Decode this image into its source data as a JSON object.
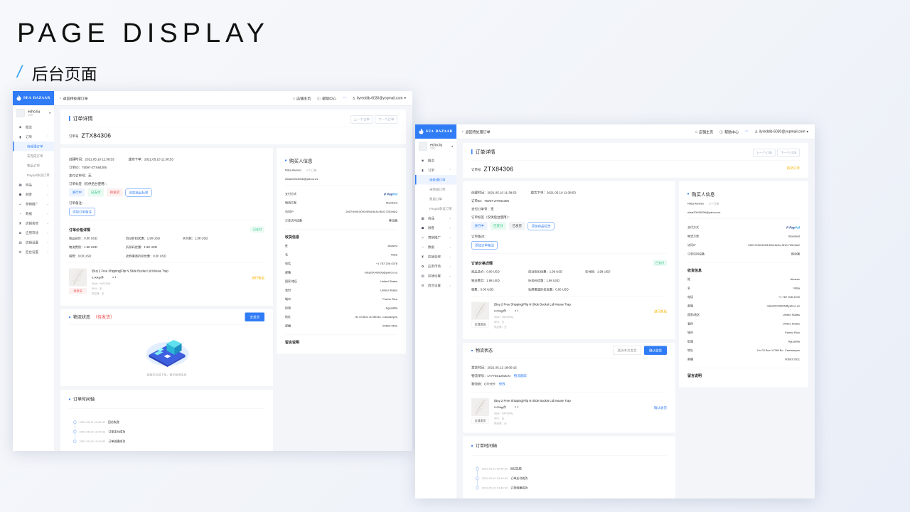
{
  "slide": {
    "title": "PAGE DISPLAY",
    "slash": "/",
    "subtitle": "后台页面"
  },
  "colors": {
    "accent": "#2f7cf6",
    "warning": "#f5b400",
    "danger": "#ef4444",
    "success": "#1fbf7a"
  },
  "windows": [
    {
      "variant": "pending",
      "logo": "SEA BAZAAR",
      "header": {
        "back": "返回待处理订单",
        "links": [
          {
            "label": "店铺主页",
            "icon": "home-icon"
          },
          {
            "label": "帮助中心",
            "icon": "help-icon"
          }
        ],
        "email": "ilyreddib-6030@yopmail.com"
      },
      "sidebar": {
        "user": {
          "name": "echo.liu",
          "currency": "USD"
        },
        "menu": [
          {
            "label": "概览",
            "icon": "dashboard-icon"
          },
          {
            "label": "订单",
            "icon": "order-icon",
            "expanded": true,
            "children": [
              {
                "label": "待处理订单",
                "active": true
              },
              {
                "label": "未完成订单"
              },
              {
                "label": "售后订单"
              },
              {
                "label": "Paypal争议订单"
              }
            ]
          },
          {
            "label": "商品",
            "icon": "product-icon"
          },
          {
            "label": "顾客",
            "icon": "customer-icon"
          },
          {
            "label": "营销推广",
            "icon": "marketing-icon"
          },
          {
            "label": "数据",
            "icon": "data-icon"
          },
          {
            "label": "店铺装修",
            "icon": "decor-icon"
          },
          {
            "label": "应用市场",
            "icon": "apps-icon"
          },
          {
            "label": "店铺设置",
            "icon": "store-settings-icon"
          },
          {
            "label": "后台设置",
            "icon": "settings-icon"
          }
        ]
      },
      "title": {
        "heading": "订单详情",
        "order_no_label": "订单号",
        "order_no": "ZTX84306",
        "prev": "上一个订单",
        "next": "下一个订单"
      },
      "info": {
        "created": "创建时间：2021.05.10 11:38:53",
        "placed": "成功下单：2021.05.10 11:38:53",
        "order_id": "订单ID：75097-ZTX84306",
        "pay_no": "支付订单号：无",
        "tags_label": "订单标签（仅供后台使用）：",
        "tags": [
          {
            "label": "进行中",
            "tone": "blue"
          },
          {
            "label": "已支付",
            "tone": "green"
          },
          {
            "label": "待发货",
            "tone": "red"
          }
        ],
        "add_tag": "添加商品标签",
        "note_label": "订单备注：",
        "add_note": "添加订单备注"
      },
      "price": {
        "title": "订单价格详情",
        "status": "已支付",
        "cells": [
          "商品总价：0.00 USD",
          "自动折扣优惠：1.98 USD",
          "实付款：1.98 USD",
          "物流费用：1.98 USD",
          "折扣码优惠：1.98 USD",
          "",
          "税费：0.00 USD",
          "社群渠道折扣优惠：0.00 USD",
          ""
        ]
      },
      "product": {
        "title": "(Buy 2 Free Shipping)Flip N Slide Bucket Lid Mouse Trap",
        "weight": "0.00kg/件",
        "qty": "x 1",
        "style": "Style：NATURAL",
        "sku": "SKU：无",
        "supplier": "供应商：无",
        "badge": "待发货",
        "badge_tone": "red",
        "action": "进行售后",
        "action_tone": "yellow"
      },
      "logistics": {
        "title": "物流状态",
        "status": "（待发货）",
        "ship_button": "去发货",
        "empty_text": "顾客未完成下单，暂无物流信息"
      },
      "timeline": {
        "title": "订单时间轴",
        "items": [
          {
            "time": "2021.05.11 13:40:32",
            "text": "回访失败"
          },
          {
            "time": "2021.05.10 13:40:32",
            "text": "订单支付成功"
          },
          {
            "time": "2021.05.10 13:40:32",
            "text": "订单创建成功"
          }
        ]
      },
      "buyer": {
        "title": "购买人信息",
        "name": "Nilsa Alvarez",
        "orders": "0个订单",
        "email": "nilsa20043006@yahoo.es",
        "rows": [
          {
            "label": "支付方式",
            "value": "PayPal"
          },
          {
            "label": "物流方案",
            "value": "Standard"
          },
          {
            "label": "访问IP",
            "value": "2607:fb90:5093:9f54:8c3c:f610:725:b8c2"
          },
          {
            "label": "订单访问设备",
            "value": "移动端"
          }
        ],
        "shipping_title": "收货信息",
        "shipping": [
          {
            "label": "姓",
            "value": "Alvarez"
          },
          {
            "label": "名",
            "value": "Nilsa"
          },
          {
            "label": "电话",
            "value": "+1 787 208 4376"
          },
          {
            "label": "邮箱",
            "value": "nilsa20043006@yahoo.es"
          },
          {
            "label": "国家/地区",
            "value": "United States"
          },
          {
            "label": "省份",
            "value": "United States"
          },
          {
            "label": "城市",
            "value": "Puerto Rico"
          },
          {
            "label": "街道",
            "value": "Aguadilla"
          },
          {
            "label": "地址",
            "value": "Hc 03 Box 11788 Bo. Camaseyes"
          },
          {
            "label": "邮编",
            "value": "00603 9511"
          }
        ],
        "message_title": "留言说明"
      }
    },
    {
      "variant": "shipped",
      "logo": "SEA BAZAAR",
      "header": {
        "back": "返回待处理订单",
        "links": [
          {
            "label": "店铺主页",
            "icon": "home-icon"
          },
          {
            "label": "帮助中心",
            "icon": "help-icon"
          }
        ],
        "email": "ilyreddib-6030@yopmail.com"
      },
      "sidebar": {
        "user": {
          "name": "echo.liu",
          "currency": "USD"
        },
        "menu": [
          {
            "label": "概览",
            "icon": "dashboard-icon"
          },
          {
            "label": "订单",
            "icon": "order-icon",
            "expanded": true,
            "children": [
              {
                "label": "待处理订单",
                "active": true
              },
              {
                "label": "未完成订单"
              },
              {
                "label": "售后订单"
              },
              {
                "label": "Paypal争议订单"
              }
            ]
          },
          {
            "label": "商品",
            "icon": "product-icon"
          },
          {
            "label": "顾客",
            "icon": "customer-icon"
          },
          {
            "label": "营销推广",
            "icon": "marketing-icon"
          },
          {
            "label": "数据",
            "icon": "data-icon"
          },
          {
            "label": "店铺装修",
            "icon": "decor-icon"
          },
          {
            "label": "应用市场",
            "icon": "apps-icon"
          },
          {
            "label": "店铺设置",
            "icon": "store-settings-icon"
          },
          {
            "label": "后台设置",
            "icon": "settings-icon"
          }
        ]
      },
      "title": {
        "heading": "订单详情",
        "order_no_label": "订单号",
        "order_no": "ZTX84306",
        "prev": "上一个订单",
        "next": "下一个订单",
        "cancel": "取消订单"
      },
      "info": {
        "created": "创建时间：2021.05.10 11:38:53",
        "placed": "成功下单：2021.05.10 11:38:53",
        "order_id": "订单ID：75097-ZTX84306",
        "pay_no": "支付订单号：无",
        "tags_label": "订单标签（仅供后台使用）：",
        "tags": [
          {
            "label": "进行中",
            "tone": "blue"
          },
          {
            "label": "已支付",
            "tone": "green"
          },
          {
            "label": "已发货",
            "tone": "gray"
          }
        ],
        "add_tag": "添加商品标签",
        "note_label": "订单备注：",
        "add_note": "添加订单备注"
      },
      "price": {
        "title": "订单价格详情",
        "status": "已支付",
        "cells": [
          "商品总价：0.00 USD",
          "自动折扣优惠：1.98 USD",
          "实付款：1.98 USD",
          "物流费用：1.98 USD",
          "折扣码优惠：1.98 USD",
          "",
          "税费：0.00 USD",
          "社群渠道折扣优惠：0.00 USD",
          ""
        ]
      },
      "product": {
        "title": "(Buy 2 Free Shipping)Flip N Slide Bucket Lid Mouse Trap",
        "weight": "0.00kg/件",
        "qty": "x 1",
        "style": "Style：NATURAL",
        "sku": "SKU：无",
        "supplier": "供应商：无",
        "badge": "全部发货",
        "badge_tone": "gray",
        "action": "进行售后",
        "action_tone": "yellow"
      },
      "logistics": {
        "title": "物流状态",
        "cancel_button": "取消本次发货",
        "confirm_button": "确认收货",
        "ship_time": "发货时间：2021.05.12 18:09:15",
        "tracking": "物流单号：LY770S1283CN",
        "tracking_link": "物流跟踪",
        "carrier": "物流商：OTHER",
        "carrier_link": "修改",
        "product": {
          "title": "(Buy 2 Free Shipping)Flip N Slide Bucket Lid Mouse Trap",
          "weight": "0.00kg/件",
          "qty": "x 1",
          "style": "Style：NATURAL",
          "sku": "SKU：无",
          "supplier": "供应商：无",
          "badge": "全部发货",
          "badge_tone": "gray",
          "action": "确认收货",
          "action_tone": "blue"
        }
      },
      "timeline": {
        "title": "订单时间轴",
        "items": [
          {
            "time": "2021.05.11 13:40:32",
            "text": "回访失败"
          },
          {
            "time": "2021.05.10 13:40:32",
            "text": "订单支付成功"
          },
          {
            "time": "2021.05.10 13:40:32",
            "text": "订单创建成功"
          }
        ]
      },
      "buyer": {
        "title": "购买人信息",
        "name": "Nilsa Alvarez",
        "orders": "0个订单",
        "email": "nilsa20043006@yahoo.es",
        "rows": [
          {
            "label": "支付方式",
            "value": "PayPal"
          },
          {
            "label": "物流方案",
            "value": "Standard"
          },
          {
            "label": "访问IP",
            "value": "2607:fb90:5093:9f54:8c3c:f610:725:b8c2"
          },
          {
            "label": "订单访问设备",
            "value": "移动端"
          }
        ],
        "shipping_title": "收货信息",
        "shipping": [
          {
            "label": "姓",
            "value": "Alvarez"
          },
          {
            "label": "名",
            "value": "Nilsa"
          },
          {
            "label": "电话",
            "value": "+1 787 208 4376"
          },
          {
            "label": "邮箱",
            "value": "nilsa20043006@yahoo.es"
          },
          {
            "label": "国家/地区",
            "value": "United States"
          },
          {
            "label": "省份",
            "value": "United States"
          },
          {
            "label": "城市",
            "value": "Puerto Rico"
          },
          {
            "label": "街道",
            "value": "Aguadilla"
          },
          {
            "label": "地址",
            "value": "Hc 03 Box 11788 Bo. Camaseyes"
          },
          {
            "label": "邮编",
            "value": "00603 9511"
          }
        ],
        "message_title": "留言说明"
      }
    }
  ]
}
